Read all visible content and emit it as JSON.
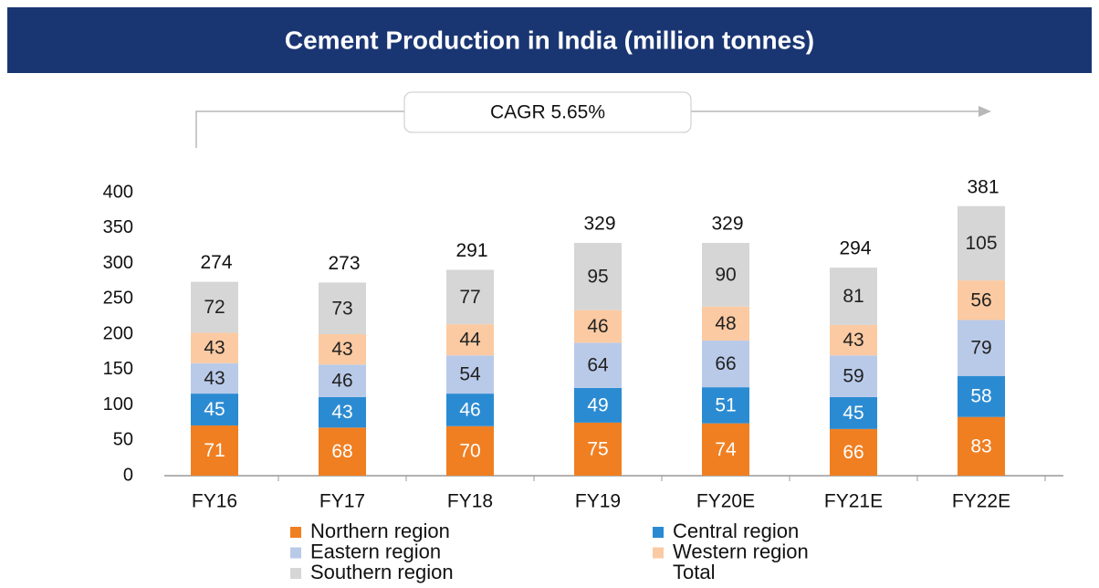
{
  "chart_data": {
    "type": "stacked_bar",
    "title": "Cement Production in India (million tonnes)",
    "annotation": "CAGR 5.65%",
    "categories": [
      "FY16",
      "FY17",
      "FY18",
      "FY19",
      "FY20E",
      "FY21E",
      "FY22E"
    ],
    "series": [
      {
        "name": "Northern region",
        "color": "#f07f22",
        "values": [
          71,
          68,
          70,
          75,
          74,
          66,
          83
        ]
      },
      {
        "name": "Central region",
        "color": "#2b8bd2",
        "values": [
          45,
          43,
          46,
          49,
          51,
          45,
          58
        ]
      },
      {
        "name": "Eastern region",
        "color": "#b9cae9",
        "values": [
          43,
          46,
          54,
          64,
          66,
          59,
          79
        ]
      },
      {
        "name": "Western region",
        "color": "#fbcaa2",
        "values": [
          43,
          43,
          44,
          46,
          48,
          43,
          56
        ]
      },
      {
        "name": "Southern region",
        "color": "#d6d6d6",
        "values": [
          72,
          73,
          77,
          95,
          90,
          81,
          105
        ]
      }
    ],
    "total": {
      "name": "Total",
      "values": [
        274,
        273,
        291,
        329,
        329,
        294,
        381
      ]
    },
    "ylim": [
      0,
      400
    ],
    "yticks": [
      0,
      50,
      100,
      150,
      200,
      250,
      300,
      350,
      400
    ],
    "grid": false
  }
}
